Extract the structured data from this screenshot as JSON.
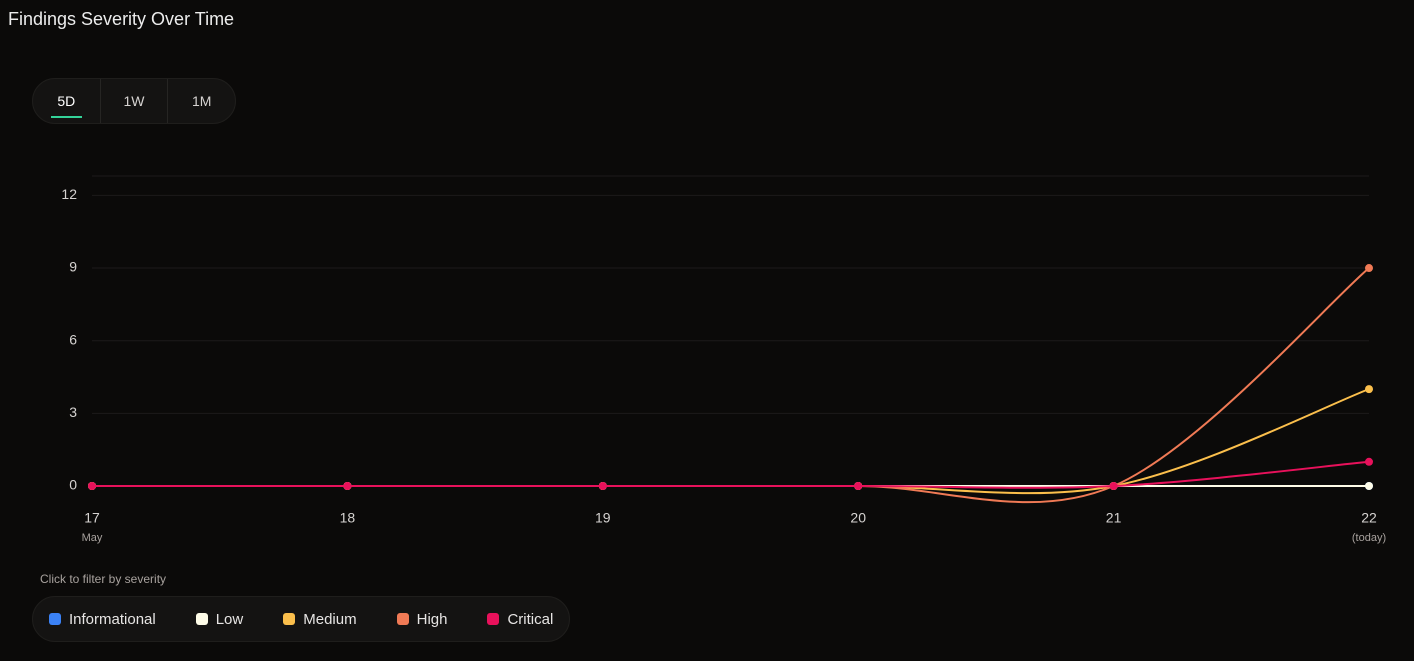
{
  "header": {
    "title": "Findings Severity Over Time"
  },
  "range_buttons": {
    "options": [
      "5D",
      "1W",
      "1M"
    ],
    "selected": "5D"
  },
  "chart_data": {
    "type": "line",
    "categories": [
      "17",
      "18",
      "19",
      "20",
      "21",
      "22"
    ],
    "x_sublabels": [
      "May",
      null,
      null,
      null,
      null,
      "(today)"
    ],
    "ylim": [
      0,
      12.8
    ],
    "yticks": [
      0,
      3,
      6,
      9,
      12
    ],
    "grid": true,
    "smooth": true,
    "legend_hint": "Click to filter by severity",
    "series": [
      {
        "name": "Informational",
        "color": "#3b82f6",
        "values": [
          0,
          0,
          0,
          0,
          0,
          0
        ]
      },
      {
        "name": "Low",
        "color": "#fefce8",
        "values": [
          0,
          0,
          0,
          0,
          0,
          0
        ]
      },
      {
        "name": "Medium",
        "color": "#fbbf4c",
        "values": [
          0,
          0,
          0,
          0,
          0,
          4
        ]
      },
      {
        "name": "High",
        "color": "#f07a55",
        "values": [
          0,
          0,
          0,
          0,
          0,
          9
        ]
      },
      {
        "name": "Critical",
        "color": "#e8115b",
        "values": [
          0,
          0,
          0,
          0,
          0,
          1
        ]
      }
    ]
  }
}
